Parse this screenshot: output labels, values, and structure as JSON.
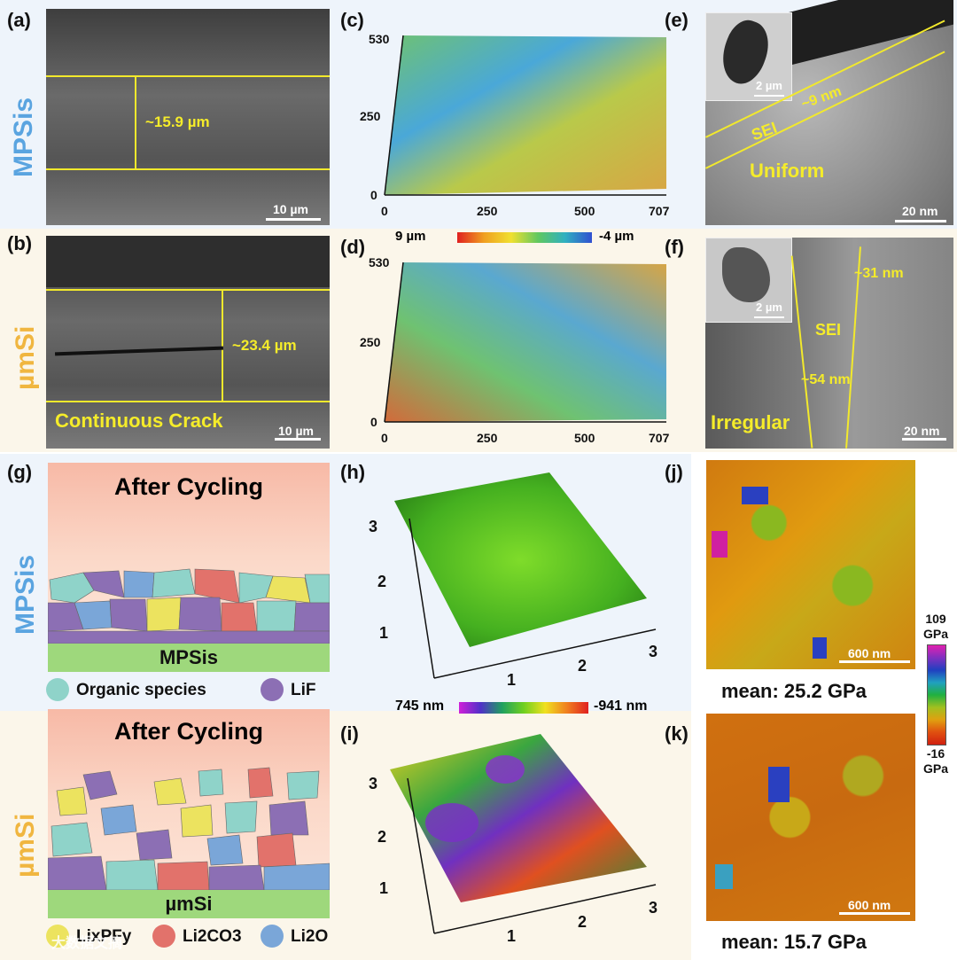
{
  "panels": {
    "a": {
      "label": "(a)",
      "measure": "~15.9 µm",
      "scale": "10 µm"
    },
    "b": {
      "label": "(b)",
      "measure": "~23.4 µm",
      "caption": "Continuous Crack",
      "scale": "10 µm"
    },
    "c": {
      "label": "(c)",
      "x_ticks": [
        "0",
        "250",
        "500",
        "707"
      ],
      "y_ticks": [
        "530",
        "250",
        "0"
      ]
    },
    "d": {
      "label": "(d)",
      "x_ticks": [
        "0",
        "250",
        "500",
        "707"
      ],
      "y_ticks": [
        "530",
        "250",
        "0"
      ],
      "colorbar": {
        "max": "9 µm",
        "min": "-4 µm"
      }
    },
    "e": {
      "label": "(e)",
      "thickness": "~9 nm",
      "sei": "SEI",
      "caption": "Uniform",
      "inset_scale": "2 µm",
      "scale": "20 nm"
    },
    "f": {
      "label": "(f)",
      "thick_top": "~31 nm",
      "thick_bottom": "~54 nm",
      "sei": "SEI",
      "caption": "Irregular",
      "inset_scale": "2 µm",
      "scale": "20 nm"
    },
    "g": {
      "label": "(g)",
      "title_top": "After  Cycling",
      "base_top": "MPSis",
      "title_bottom": "After  Cycling",
      "base_bottom": "µmSi"
    },
    "h": {
      "label": "(h)",
      "x_ticks": [
        "1",
        "2",
        "3"
      ],
      "y_ticks": [
        "3",
        "2",
        "1"
      ]
    },
    "i": {
      "label": "(i)",
      "x_ticks": [
        "1",
        "2",
        "3"
      ],
      "y_ticks": [
        "3",
        "2",
        "1"
      ],
      "colorbar": {
        "max": "745 nm",
        "min": "-941 nm"
      }
    },
    "j": {
      "label": "(j)",
      "scale": "600 nm",
      "mean": "mean: 25.2 GPa"
    },
    "k": {
      "label": "(k)",
      "scale": "600 nm",
      "mean": "mean: 15.7 GPa"
    }
  },
  "row_labels": {
    "top": "MPSis",
    "mid": "µmSi",
    "g_top": "MPSis",
    "g_bottom": "µmSi"
  },
  "legend": {
    "organic": "Organic species",
    "lif": "LiF",
    "lixpfy": "LixPFy",
    "li2co3": "Li2CO3",
    "li2o": "Li2O"
  },
  "modulus_colorbar": {
    "max": "109",
    "max_unit": "GPa",
    "min": "-16",
    "min_unit": "GPa"
  },
  "watermark": "大数据文摘",
  "colors": {
    "yellow": "#f2e92c",
    "organic": "#8fd3c9",
    "lif": "#8c6fb4",
    "lixpfy": "#ece35f",
    "li2co3": "#e2726b",
    "li2o": "#7aa6d8"
  }
}
